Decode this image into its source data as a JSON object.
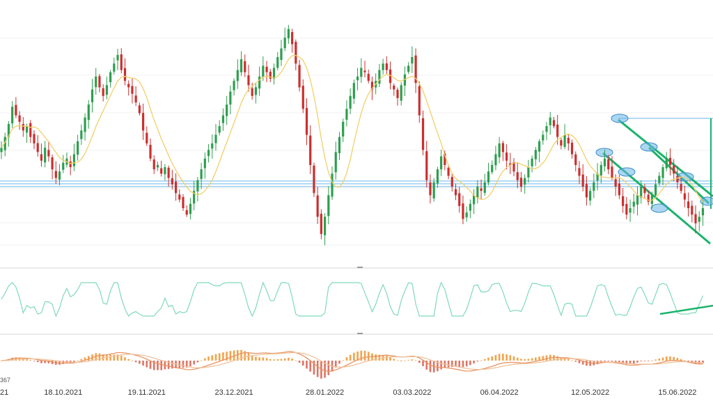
{
  "chart_data": {
    "type": "candlestick",
    "colors": {
      "up": "#2e9e4f",
      "down": "#cc2e2e",
      "ma": "#f2cf6a",
      "rsi": "#7fd9b9",
      "macd_line": "#e89361",
      "signal_line": "#efc29c",
      "hist_pos": "#f3a34a",
      "hist_neg": "#df7464",
      "support_line": "#6ab4e8",
      "channel": "#19b36b",
      "marker": "#6ab4e8",
      "grid": "#eeeeee",
      "divider": "#d4d4d4"
    },
    "x_ticks": [
      {
        "label": "18.10.2021",
        "index": 17
      },
      {
        "label": "19.11.2021",
        "index": 40
      },
      {
        "label": "23.12.2021",
        "index": 64
      },
      {
        "label": "28.01.2022",
        "index": 89
      },
      {
        "label": "03.03.2022",
        "index": 113
      },
      {
        "label": "06.04.2022",
        "index": 137
      },
      {
        "label": "12.05.2022",
        "index": 162
      },
      {
        "label": "15.06.2022",
        "index": 186
      }
    ],
    "corner_label": "367",
    "partial_first_label": "21",
    "series_closes": [
      168,
      173,
      179,
      187,
      183,
      180,
      176,
      178,
      173,
      170,
      166,
      162,
      168,
      164,
      158,
      154,
      157,
      161,
      163,
      159,
      165,
      171,
      176,
      182,
      188,
      195,
      201,
      196,
      192,
      197,
      203,
      207,
      211,
      204,
      199,
      196,
      193,
      189,
      184,
      176,
      170,
      163,
      158,
      160,
      156,
      159,
      154,
      151,
      147,
      144,
      140,
      137,
      142,
      148,
      153,
      158,
      163,
      167,
      170,
      174,
      178,
      183,
      188,
      194,
      199,
      204,
      209,
      203,
      197,
      192,
      196,
      201,
      206,
      203,
      200,
      205,
      210,
      214,
      219,
      223,
      216,
      207,
      196,
      186,
      174,
      160,
      147,
      136,
      128,
      136,
      146,
      156,
      166,
      173,
      180,
      186,
      192,
      198,
      201,
      205,
      203,
      199,
      195,
      199,
      204,
      207,
      204,
      198,
      195,
      191,
      197,
      202,
      206,
      210,
      198,
      183,
      167,
      153,
      146,
      152,
      158,
      164,
      160,
      155,
      150,
      146,
      141,
      135,
      138,
      142,
      146,
      150,
      148,
      152,
      157,
      160,
      165,
      170,
      166,
      162,
      160,
      157,
      153,
      150,
      154,
      159,
      163,
      167,
      171,
      174,
      178,
      182,
      178,
      173,
      169,
      174,
      170,
      165,
      160,
      155,
      150,
      145,
      148,
      152,
      156,
      160,
      163,
      158,
      154,
      150,
      146,
      141,
      137,
      140,
      143,
      146,
      150,
      147,
      143,
      146,
      151,
      155,
      159,
      163,
      160,
      156,
      152,
      148,
      144,
      140,
      137,
      133,
      136,
      140
    ]
  }
}
